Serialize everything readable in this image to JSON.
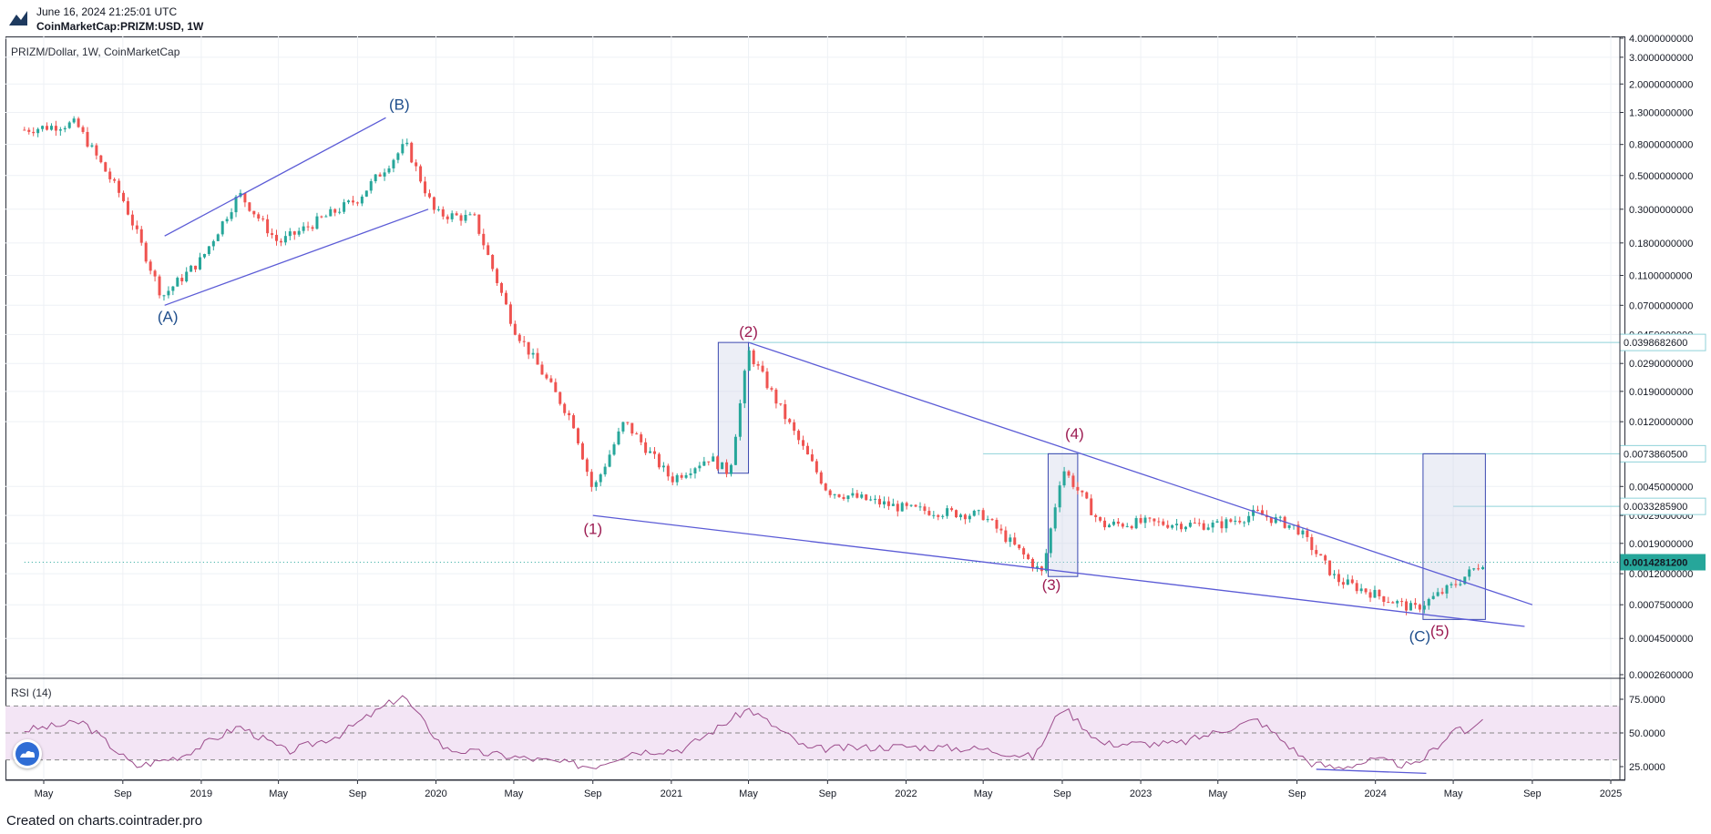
{
  "header": {
    "timestamp": "June 16, 2024 21:25:01 UTC",
    "symbol": "CoinMarketCap:PRIZM:USD, 1W"
  },
  "chart_title": "PRIZM/Dollar, 1W, CoinMarketCap",
  "rsi_title": "RSI (14)",
  "footer": "Created on charts.cointrader.pro",
  "colors": {
    "up": "#26a69a",
    "down": "#ef5350",
    "trendline": "#5b5bd6",
    "wave_primary": "#1f4e8c",
    "wave_secondary": "#9c1c52",
    "rsi": "#9c4d8c",
    "rsi_band": "#f3e5f5",
    "price_label": "#26a69a",
    "level_line": "#8fd2d9"
  },
  "chart_data": [
    {
      "type": "candlestick",
      "scale": "log",
      "y_ticks": [
        "4.0000000000",
        "3.0000000000",
        "2.0000000000",
        "1.3000000000",
        "0.8000000000",
        "0.5000000000",
        "0.3000000000",
        "0.1800000000",
        "0.1100000000",
        "0.0700000000",
        "0.0450000000",
        "0.0290000000",
        "0.0190000000",
        "0.0120000000",
        "0.0045000000",
        "0.0029000000",
        "0.0019000000",
        "0.0012000000",
        "0.0007500000",
        "0.0004500000",
        "0.0002600000"
      ],
      "y_tick_values": [
        4.0,
        3.0,
        2.0,
        1.3,
        0.8,
        0.5,
        0.3,
        0.18,
        0.11,
        0.07,
        0.045,
        0.029,
        0.019,
        0.012,
        0.0045,
        0.0029,
        0.0019,
        0.0012,
        0.00075,
        0.00045,
        0.00026
      ],
      "x_ticks": [
        "May",
        "Sep",
        "2019",
        "May",
        "Sep",
        "2020",
        "May",
        "Sep",
        "2021",
        "May",
        "Sep",
        "2022",
        "May",
        "Sep",
        "2023",
        "May",
        "Sep",
        "2024",
        "May",
        "Sep",
        "2025"
      ],
      "x_tick_dates": [
        "2018-05-01",
        "2018-09-01",
        "2019-01-01",
        "2019-05-01",
        "2019-09-01",
        "2020-01-01",
        "2020-05-01",
        "2020-09-01",
        "2021-01-01",
        "2021-05-01",
        "2021-09-01",
        "2022-01-01",
        "2022-05-01",
        "2022-09-01",
        "2023-01-01",
        "2023-05-01",
        "2023-09-01",
        "2024-01-01",
        "2024-05-01",
        "2024-09-01",
        "2025-01-01"
      ],
      "price_labels": [
        {
          "value": "0.0398682600",
          "price": 0.03986826,
          "style": "outline"
        },
        {
          "value": "0.0073860500",
          "price": 0.00738605,
          "style": "outline"
        },
        {
          "value": "0.0033285900",
          "price": 0.00332859,
          "style": "outline"
        },
        {
          "value": "0.0014281200",
          "price": 0.00142812,
          "style": "current"
        }
      ],
      "anchors": [
        {
          "date": "2018-04-01",
          "price": 1.0
        },
        {
          "date": "2018-06-20",
          "price": 1.1
        },
        {
          "date": "2018-09-01",
          "price": 0.35
        },
        {
          "date": "2018-11-01",
          "price": 0.08
        },
        {
          "date": "2019-01-01",
          "price": 0.14
        },
        {
          "date": "2019-03-01",
          "price": 0.38
        },
        {
          "date": "2019-05-01",
          "price": 0.18
        },
        {
          "date": "2019-09-01",
          "price": 0.35
        },
        {
          "date": "2019-11-15",
          "price": 0.8
        },
        {
          "date": "2019-12-31",
          "price": 0.28
        },
        {
          "date": "2020-03-01",
          "price": 0.26
        },
        {
          "date": "2020-05-01",
          "price": 0.05
        },
        {
          "date": "2020-08-01",
          "price": 0.012
        },
        {
          "date": "2020-09-01",
          "price": 0.0042
        },
        {
          "date": "2020-10-20",
          "price": 0.012
        },
        {
          "date": "2021-01-01",
          "price": 0.005
        },
        {
          "date": "2021-03-01",
          "price": 0.007
        },
        {
          "date": "2021-04-01",
          "price": 0.0055
        },
        {
          "date": "2021-05-01",
          "price": 0.035
        },
        {
          "date": "2021-07-01",
          "price": 0.012
        },
        {
          "date": "2021-09-01",
          "price": 0.0042
        },
        {
          "date": "2022-01-01",
          "price": 0.0032
        },
        {
          "date": "2022-05-01",
          "price": 0.0029
        },
        {
          "date": "2022-08-01",
          "price": 0.0012
        },
        {
          "date": "2022-09-01",
          "price": 0.006
        },
        {
          "date": "2022-11-01",
          "price": 0.0025
        },
        {
          "date": "2023-01-01",
          "price": 0.0026
        },
        {
          "date": "2023-05-01",
          "price": 0.0025
        },
        {
          "date": "2023-07-01",
          "price": 0.003
        },
        {
          "date": "2023-09-01",
          "price": 0.0024
        },
        {
          "date": "2023-11-01",
          "price": 0.0011
        },
        {
          "date": "2024-03-01",
          "price": 0.0007
        },
        {
          "date": "2024-05-01",
          "price": 0.001
        },
        {
          "date": "2024-06-16",
          "price": 0.00143
        }
      ],
      "annotations": [
        {
          "label": "(A)",
          "date": "2018-11-10",
          "price": 0.07,
          "group": "primary",
          "pos": "below"
        },
        {
          "label": "(B)",
          "date": "2019-11-05",
          "price": 1.25,
          "group": "primary",
          "pos": "above"
        },
        {
          "label": "(1)",
          "date": "2020-09-01",
          "price": 0.0028,
          "group": "secondary",
          "pos": "below"
        },
        {
          "label": "(2)",
          "date": "2021-05-01",
          "price": 0.04,
          "group": "secondary",
          "pos": "above"
        },
        {
          "label": "(3)",
          "date": "2022-08-15",
          "price": 0.0012,
          "group": "secondary",
          "pos": "below"
        },
        {
          "label": "(4)",
          "date": "2022-09-20",
          "price": 0.0085,
          "group": "secondary",
          "pos": "above"
        },
        {
          "label": "(C)",
          "date": "2024-03-10",
          "price": 0.00055,
          "group": "primary",
          "pos": "below"
        },
        {
          "label": "(5)",
          "date": "2024-04-10",
          "price": 0.0006,
          "group": "secondary",
          "pos": "below"
        }
      ],
      "trendlines": [
        {
          "from": {
            "date": "2018-11-05",
            "price": 0.2
          },
          "to": {
            "date": "2019-10-15",
            "price": 1.2
          }
        },
        {
          "from": {
            "date": "2018-11-05",
            "price": 0.07
          },
          "to": {
            "date": "2019-12-20",
            "price": 0.3
          }
        },
        {
          "from": {
            "date": "2021-05-01",
            "price": 0.0399
          },
          "to": {
            "date": "2024-09-01",
            "price": 0.00075
          }
        },
        {
          "from": {
            "date": "2020-09-01",
            "price": 0.0029
          },
          "to": {
            "date": "2024-08-20",
            "price": 0.00054
          }
        }
      ],
      "boxes": [
        {
          "from_date": "2021-03-15",
          "to_date": "2021-05-01",
          "low": 0.0055,
          "high": 0.03986826
        },
        {
          "from_date": "2022-08-10",
          "to_date": "2022-09-25",
          "low": 0.00115,
          "high": 0.00738605
        },
        {
          "from_date": "2024-03-15",
          "to_date": "2024-06-20",
          "low": 0.0006,
          "high": 0.00738605
        }
      ],
      "level_lines": [
        {
          "price": 0.03986826,
          "from_date": "2021-05-01"
        },
        {
          "price": 0.00738605,
          "from_date": "2022-05-01"
        },
        {
          "price": 0.00332859,
          "from_date": "2024-05-01"
        },
        {
          "price": 0.00142812,
          "from_date": "2018-04-01",
          "style": "dotted"
        }
      ]
    },
    {
      "type": "line",
      "name": "RSI (14)",
      "y_ticks": [
        "75.0000",
        "50.0000",
        "25.0000"
      ],
      "y_tick_values": [
        75,
        50,
        25
      ],
      "bands": {
        "upper": 70,
        "lower": 30
      },
      "anchors": [
        {
          "date": "2018-04-01",
          "value": 52
        },
        {
          "date": "2018-07-01",
          "value": 58
        },
        {
          "date": "2018-09-20",
          "value": 25
        },
        {
          "date": "2018-12-01",
          "value": 33
        },
        {
          "date": "2019-03-01",
          "value": 55
        },
        {
          "date": "2019-05-15",
          "value": 36
        },
        {
          "date": "2019-08-01",
          "value": 48
        },
        {
          "date": "2019-11-10",
          "value": 78
        },
        {
          "date": "2020-01-15",
          "value": 38
        },
        {
          "date": "2020-04-01",
          "value": 34
        },
        {
          "date": "2020-09-01",
          "value": 25
        },
        {
          "date": "2020-11-01",
          "value": 36
        },
        {
          "date": "2021-01-20",
          "value": 38
        },
        {
          "date": "2021-05-01",
          "value": 68
        },
        {
          "date": "2021-08-01",
          "value": 38
        },
        {
          "date": "2022-01-01",
          "value": 40
        },
        {
          "date": "2022-05-01",
          "value": 38
        },
        {
          "date": "2022-07-20",
          "value": 32
        },
        {
          "date": "2022-09-01",
          "value": 70
        },
        {
          "date": "2022-11-01",
          "value": 42
        },
        {
          "date": "2023-03-01",
          "value": 42
        },
        {
          "date": "2023-07-01",
          "value": 60
        },
        {
          "date": "2023-09-20",
          "value": 28
        },
        {
          "date": "2023-11-01",
          "value": 24
        },
        {
          "date": "2024-01-01",
          "value": 30
        },
        {
          "date": "2024-03-01",
          "value": 25
        },
        {
          "date": "2024-04-01",
          "value": 38
        },
        {
          "date": "2024-05-10",
          "value": 56
        },
        {
          "date": "2024-05-25",
          "value": 48
        },
        {
          "date": "2024-06-16",
          "value": 62
        }
      ]
    }
  ]
}
